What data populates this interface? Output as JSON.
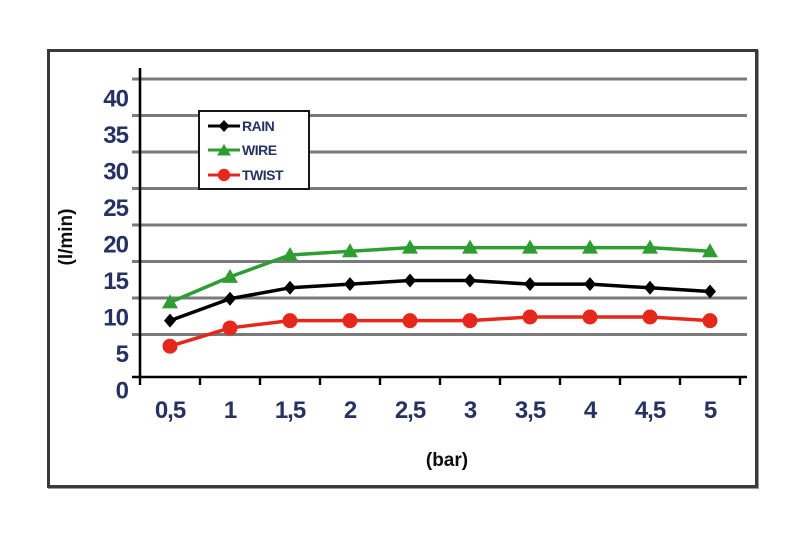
{
  "chart_data": {
    "type": "line",
    "title": "",
    "xlabel": "(bar)",
    "ylabel": "(l/min)",
    "x_unit": "bar",
    "y_unit": "l/min",
    "categories": [
      "0,5",
      "1",
      "1,5",
      "2",
      "2,5",
      "3",
      "3,5",
      "4",
      "4,5",
      "5"
    ],
    "categories_numeric": [
      0.5,
      1,
      1.5,
      2,
      2.5,
      3,
      3.5,
      4,
      4.5,
      5
    ],
    "yticks": [
      0,
      5,
      10,
      15,
      20,
      25,
      30,
      35,
      40
    ],
    "ylim": [
      0,
      42.5
    ],
    "grid": "horizontal",
    "legend_position": "upper-left-inside",
    "series": [
      {
        "name": "RAIN",
        "color": "#000000",
        "marker": "diamond",
        "values": [
          9.5,
          12.5,
          14,
          14.5,
          15,
          15,
          14.5,
          14.5,
          14,
          13.5
        ]
      },
      {
        "name": "WIRE",
        "color": "#2e9e33",
        "marker": "triangle",
        "values": [
          12,
          15.5,
          18.5,
          19,
          19.5,
          19.5,
          19.5,
          19.5,
          19.5,
          19
        ]
      },
      {
        "name": "TWIST",
        "color": "#e5281b",
        "marker": "circle",
        "values": [
          6,
          8.5,
          9.5,
          9.5,
          9.5,
          9.5,
          10,
          10,
          10,
          9.5
        ]
      }
    ],
    "colors": {
      "gridline": "#7a7a7a",
      "axis": "#000000",
      "tick_text": "#273263",
      "frame_border": "#3a3a3a"
    }
  }
}
